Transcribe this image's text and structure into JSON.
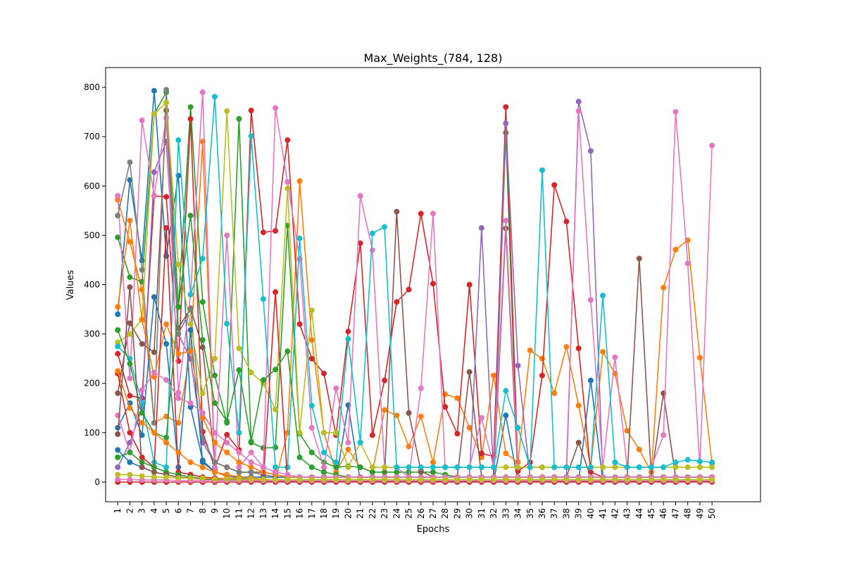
{
  "chart_data": {
    "type": "line",
    "title": "Max_Weights_(784, 128)",
    "xlabel": "Epochs",
    "ylabel": "Values",
    "x": [
      1,
      2,
      3,
      4,
      5,
      6,
      7,
      8,
      9,
      10,
      11,
      12,
      13,
      14,
      15,
      16,
      17,
      18,
      19,
      20,
      21,
      22,
      23,
      24,
      25,
      26,
      27,
      28,
      29,
      30,
      31,
      32,
      33,
      34,
      35,
      36,
      37,
      38,
      39,
      40,
      41,
      42,
      43,
      44,
      45,
      46,
      47,
      48,
      49,
      50
    ],
    "xlim": [
      0,
      54
    ],
    "ylim": [
      -40,
      840
    ],
    "yticks": [
      0,
      100,
      200,
      300,
      400,
      500,
      600,
      700,
      800
    ],
    "grid": false,
    "legend": "none",
    "marker": "circle",
    "palette": [
      "#1f77b4",
      "#ff7f0e",
      "#2ca02c",
      "#d62728",
      "#9467bd",
      "#8c564b",
      "#e377c2",
      "#7f7f7f",
      "#bcbd22",
      "#17becf"
    ],
    "series": [
      {
        "color": "#1f77b4",
        "values": [
          340,
          612,
          449,
          793,
          458,
          621,
          152,
          44,
          20,
          14,
          8,
          5,
          4,
          3,
          3,
          2,
          2,
          2,
          1,
          156,
          1,
          1,
          1,
          1,
          1,
          1,
          1,
          1,
          1,
          1,
          1,
          1,
          135,
          1,
          1,
          1,
          1,
          1,
          1,
          206,
          1,
          1,
          1,
          1,
          1,
          1,
          1,
          1,
          1,
          1
        ]
      },
      {
        "color": "#ff7f0e",
        "values": [
          572,
          487,
          390,
          120,
          133,
          120,
          267,
          690,
          22,
          10,
          6,
          4,
          3,
          3,
          100,
          610,
          288,
          100,
          20,
          66,
          30,
          20,
          146,
          135,
          72,
          133,
          40,
          178,
          170,
          110,
          50,
          216,
          58,
          40,
          267,
          250,
          180,
          274,
          155,
          30,
          264,
          220,
          104,
          66,
          20,
          394,
          471,
          490,
          252,
          38
        ]
      },
      {
        "color": "#2ca02c",
        "values": [
          496,
          415,
          406,
          746,
          790,
          355,
          760,
          365,
          216,
          120,
          736,
          80,
          69,
          70,
          520,
          98,
          60,
          40,
          30,
          32,
          30,
          20,
          20,
          20,
          20,
          20,
          20,
          15,
          10,
          10,
          10,
          10,
          708,
          10,
          10,
          10,
          10,
          10,
          10,
          10,
          10,
          10,
          10,
          10,
          10,
          10,
          10,
          10,
          10,
          10
        ]
      },
      {
        "color": "#d62728",
        "values": [
          260,
          175,
          170,
          580,
          578,
          245,
          736,
          102,
          28,
          96,
          65,
          753,
          506,
          509,
          693,
          320,
          250,
          220,
          95,
          305,
          484,
          95,
          206,
          365,
          390,
          544,
          402,
          152,
          98,
          400,
          58,
          52,
          760,
          22,
          40,
          216,
          602,
          528,
          271,
          20,
          10,
          10,
          10,
          10,
          10,
          10,
          10,
          10,
          10,
          10
        ]
      },
      {
        "color": "#9467bd",
        "values": [
          30,
          80,
          150,
          628,
          690,
          300,
          250,
          80,
          40,
          30,
          20,
          20,
          15,
          10,
          10,
          10,
          10,
          10,
          10,
          10,
          10,
          10,
          10,
          10,
          10,
          10,
          10,
          10,
          10,
          10,
          515,
          10,
          727,
          236,
          10,
          10,
          10,
          10,
          771,
          671,
          10,
          10,
          10,
          10,
          10,
          10,
          10,
          10,
          10,
          10
        ]
      },
      {
        "color": "#8c564b",
        "values": [
          180,
          322,
          280,
          263,
          753,
          312,
          352,
          273,
          40,
          30,
          20,
          20,
          20,
          15,
          10,
          10,
          10,
          10,
          10,
          10,
          10,
          10,
          10,
          548,
          140,
          22,
          10,
          10,
          10,
          223,
          10,
          10,
          514,
          10,
          10,
          10,
          10,
          10,
          80,
          10,
          10,
          10,
          10,
          453,
          10,
          180,
          10,
          10,
          10,
          10
        ]
      },
      {
        "color": "#e377c2",
        "values": [
          580,
          210,
          733,
          580,
          738,
          181,
          380,
          790,
          30,
          500,
          30,
          60,
          30,
          758,
          608,
          452,
          110,
          30,
          190,
          80,
          580,
          470,
          30,
          30,
          10,
          190,
          544,
          30,
          30,
          30,
          130,
          30,
          530,
          30,
          30,
          30,
          30,
          30,
          752,
          369,
          30,
          253,
          30,
          30,
          30,
          95,
          750,
          443,
          30,
          682
        ]
      },
      {
        "color": "#7f7f7f",
        "values": [
          540,
          648,
          430,
          120,
          795,
          300,
          350,
          90,
          40,
          30,
          20,
          20,
          15,
          10,
          10,
          10,
          10,
          10,
          10,
          10,
          10,
          10,
          10,
          10,
          10,
          10,
          10,
          10,
          10,
          10,
          10,
          10,
          10,
          10,
          10,
          10,
          10,
          10,
          10,
          10,
          10,
          10,
          10,
          10,
          10,
          10,
          10,
          10,
          10,
          10
        ]
      },
      {
        "color": "#bcbd22",
        "values": [
          283,
          300,
          330,
          746,
          769,
          441,
          320,
          180,
          250,
          752,
          271,
          222,
          200,
          147,
          595,
          100,
          348,
          100,
          100,
          30,
          80,
          30,
          30,
          30,
          30,
          30,
          30,
          30,
          30,
          30,
          30,
          30,
          30,
          30,
          30,
          30,
          30,
          30,
          30,
          30,
          30,
          30,
          30,
          30,
          30,
          30,
          30,
          30,
          30,
          30
        ]
      },
      {
        "color": "#17becf",
        "values": [
          275,
          250,
          160,
          40,
          30,
          693,
          380,
          453,
          781,
          321,
          100,
          701,
          371,
          30,
          30,
          494,
          155,
          60,
          40,
          290,
          80,
          504,
          517,
          30,
          30,
          30,
          30,
          30,
          30,
          30,
          30,
          30,
          185,
          110,
          30,
          632,
          30,
          30,
          30,
          30,
          378,
          40,
          30,
          30,
          30,
          30,
          40,
          45,
          42,
          40
        ]
      },
      {
        "color": "#1f77b4",
        "values": [
          110,
          160,
          95,
          375,
          280,
          30,
          308,
          40,
          20,
          15,
          10,
          10,
          10,
          10,
          10,
          10,
          10,
          10,
          10,
          10,
          10,
          10,
          10,
          10,
          10,
          10,
          10,
          10,
          10,
          10,
          10,
          10,
          10,
          10,
          10,
          10,
          10,
          10,
          10,
          10,
          10,
          10,
          10,
          10,
          10,
          10,
          10,
          10,
          10,
          10
        ]
      },
      {
        "color": "#ff7f0e",
        "values": [
          355,
          530,
          329,
          213,
          320,
          260,
          265,
          130,
          80,
          60,
          40,
          30,
          20,
          15,
          10,
          10,
          10,
          10,
          10,
          10,
          10,
          10,
          10,
          10,
          10,
          10,
          10,
          10,
          10,
          10,
          10,
          10,
          10,
          10,
          10,
          10,
          10,
          10,
          10,
          10,
          10,
          10,
          10,
          10,
          10,
          10,
          10,
          10,
          10,
          10
        ]
      },
      {
        "color": "#2ca02c",
        "values": [
          308,
          240,
          140,
          100,
          90,
          355,
          540,
          288,
          160,
          123,
          227,
          82,
          207,
          228,
          265,
          50,
          30,
          20,
          15,
          10,
          10,
          10,
          10,
          10,
          10,
          10,
          10,
          10,
          10,
          10,
          10,
          10,
          10,
          10,
          10,
          10,
          10,
          10,
          10,
          10,
          10,
          10,
          10,
          10,
          10,
          10,
          10,
          10,
          10,
          10
        ]
      },
      {
        "color": "#d62728",
        "values": [
          220,
          100,
          50,
          30,
          515,
          20,
          15,
          10,
          8,
          6,
          5,
          4,
          3,
          385,
          2,
          2,
          2,
          1,
          1,
          1,
          1,
          1,
          1,
          1,
          1,
          1,
          1,
          1,
          1,
          1,
          1,
          1,
          1,
          1,
          1,
          1,
          1,
          1,
          1,
          1,
          1,
          1,
          1,
          1,
          1,
          1,
          1,
          1,
          1,
          1
        ]
      },
      {
        "color": "#e377c2",
        "values": [
          135,
          60,
          186,
          222,
          207,
          170,
          160,
          140,
          100,
          80,
          60,
          40,
          30,
          20,
          15,
          10,
          10,
          10,
          10,
          10,
          10,
          10,
          10,
          10,
          10,
          10,
          10,
          10,
          10,
          10,
          10,
          10,
          10,
          10,
          10,
          10,
          10,
          10,
          10,
          10,
          10,
          10,
          10,
          10,
          10,
          10,
          10,
          10,
          10,
          10
        ]
      },
      {
        "color": "#2ca02c",
        "values": [
          50,
          60,
          40,
          30,
          20,
          15,
          10,
          8,
          6,
          4,
          3,
          2,
          2,
          2,
          2,
          2,
          2,
          2,
          2,
          2,
          2,
          2,
          2,
          2,
          2,
          2,
          2,
          2,
          2,
          2,
          2,
          2,
          2,
          2,
          2,
          2,
          2,
          2,
          2,
          2,
          2,
          2,
          2,
          2,
          2,
          2,
          2,
          2,
          2,
          2
        ]
      },
      {
        "color": "#ff7f0e",
        "values": [
          225,
          150,
          120,
          100,
          80,
          60,
          40,
          30,
          20,
          15,
          10,
          8,
          6,
          4,
          3,
          2,
          2,
          2,
          2,
          2,
          2,
          2,
          2,
          2,
          2,
          2,
          2,
          2,
          2,
          2,
          2,
          2,
          2,
          2,
          2,
          2,
          2,
          2,
          2,
          2,
          2,
          2,
          2,
          2,
          2,
          2,
          2,
          2,
          2,
          2
        ]
      },
      {
        "color": "#1f77b4",
        "values": [
          65,
          40,
          30,
          20,
          15,
          10,
          8,
          6,
          5,
          4,
          3,
          2,
          2,
          2,
          2,
          2,
          2,
          2,
          2,
          2,
          2,
          2,
          2,
          2,
          2,
          2,
          2,
          2,
          2,
          2,
          2,
          2,
          2,
          2,
          2,
          2,
          2,
          2,
          2,
          2,
          2,
          2,
          2,
          2,
          2,
          2,
          2,
          2,
          2,
          2
        ]
      },
      {
        "color": "#8c564b",
        "values": [
          97,
          395,
          30,
          20,
          15,
          10,
          8,
          6,
          5,
          4,
          3,
          2,
          2,
          2,
          2,
          2,
          2,
          2,
          2,
          2,
          2,
          2,
          2,
          2,
          2,
          2,
          2,
          2,
          2,
          2,
          2,
          2,
          2,
          2,
          2,
          2,
          2,
          2,
          2,
          2,
          2,
          2,
          2,
          2,
          2,
          2,
          2,
          2,
          2,
          2
        ]
      },
      {
        "color": "#d62728",
        "values": [
          0,
          0,
          0,
          0,
          0,
          0,
          0,
          0,
          0,
          0,
          0,
          0,
          0,
          0,
          0,
          0,
          0,
          0,
          0,
          0,
          0,
          0,
          0,
          0,
          0,
          0,
          0,
          0,
          0,
          0,
          0,
          0,
          0,
          0,
          0,
          0,
          0,
          0,
          0,
          0,
          0,
          0,
          0,
          0,
          0,
          0,
          0,
          0,
          0,
          0
        ]
      },
      {
        "color": "#e377c2",
        "values": [
          5,
          5,
          4,
          4,
          4,
          3,
          3,
          3,
          3,
          3,
          3,
          3,
          3,
          3,
          3,
          3,
          3,
          3,
          3,
          3,
          3,
          3,
          3,
          3,
          3,
          3,
          3,
          3,
          3,
          3,
          3,
          3,
          3,
          3,
          3,
          3,
          3,
          3,
          3,
          3,
          3,
          3,
          3,
          3,
          3,
          3,
          3,
          3,
          3,
          3
        ]
      },
      {
        "color": "#bcbd22",
        "values": [
          15,
          15,
          12,
          10,
          10,
          8,
          8,
          8,
          6,
          6,
          6,
          5,
          5,
          5,
          5,
          5,
          5,
          5,
          5,
          5,
          5,
          5,
          5,
          5,
          5,
          5,
          5,
          5,
          5,
          5,
          5,
          5,
          5,
          5,
          5,
          5,
          5,
          5,
          5,
          5,
          5,
          5,
          5,
          5,
          5,
          5,
          5,
          5,
          5,
          5
        ]
      }
    ]
  }
}
